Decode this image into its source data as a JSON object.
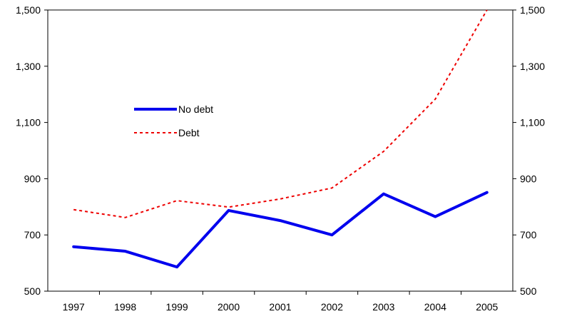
{
  "chart_data": {
    "type": "line",
    "title": "",
    "xlabel": "",
    "ylabel": "",
    "categories": [
      "1997",
      "1998",
      "1999",
      "2000",
      "2001",
      "2002",
      "2003",
      "2004",
      "2005"
    ],
    "ylim": [
      500,
      1500
    ],
    "yticks": [
      500,
      700,
      900,
      1100,
      1300,
      1500
    ],
    "ytick_labels": [
      "500",
      "700",
      "900",
      "1,100",
      "1,300",
      "1,500"
    ],
    "y_axis_both_sides": true,
    "grid": false,
    "legend_position": "center-left",
    "series": [
      {
        "name": "No debt",
        "color": "#0000ee",
        "style": "solid",
        "values": [
          658,
          642,
          586,
          787,
          751,
          700,
          846,
          765,
          851
        ]
      },
      {
        "name": "Debt",
        "color": "#ee0000",
        "style": "dotted",
        "values": [
          790,
          762,
          822,
          799,
          828,
          867,
          997,
          1183,
          1500
        ]
      }
    ]
  }
}
